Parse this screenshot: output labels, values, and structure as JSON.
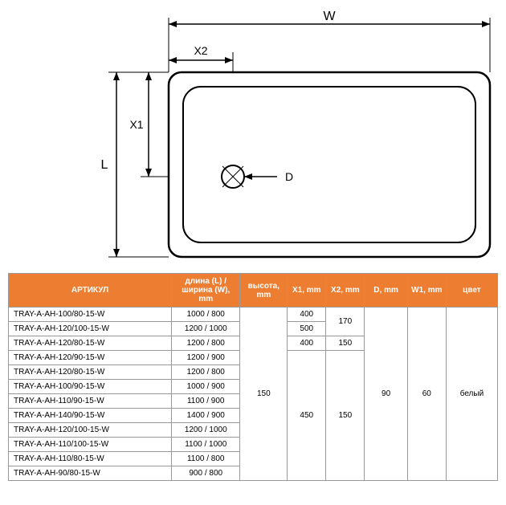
{
  "diagram": {
    "labels": {
      "W": "W",
      "L": "L",
      "X1": "X1",
      "X2": "X2",
      "D": "D"
    },
    "colors": {
      "stroke": "#000000",
      "tray_fill": "#ffffff",
      "bg": "#ffffff"
    },
    "stroke_width": 2
  },
  "table": {
    "header_bg": "#ed7d31",
    "header_fg": "#ffffff",
    "border_color": "#999999",
    "columns": [
      {
        "key": "article",
        "label": "АРТИКУЛ"
      },
      {
        "key": "dim",
        "label": "длина (L) / ширина (W), mm"
      },
      {
        "key": "h",
        "label": "высота, mm"
      },
      {
        "key": "x1",
        "label": "X1, mm"
      },
      {
        "key": "x2",
        "label": "X2, mm"
      },
      {
        "key": "d",
        "label": "D, mm"
      },
      {
        "key": "w1",
        "label": "W1, mm"
      },
      {
        "key": "color",
        "label": "цвет"
      }
    ],
    "rows": [
      {
        "article": "TRAY-A-AH-100/80-15-W",
        "dim": "1000 / 800"
      },
      {
        "article": "TRAY-A-AH-120/100-15-W",
        "dim": "1200 / 1000"
      },
      {
        "article": "TRAY-A-AH-120/80-15-W",
        "dim": "1200 / 800"
      },
      {
        "article": "TRAY-A-AH-120/90-15-W",
        "dim": "1200 / 900"
      },
      {
        "article": "TRAY-A-AH-120/80-15-W",
        "dim": "1200 / 800"
      },
      {
        "article": "TRAY-A-AH-100/90-15-W",
        "dim": "1000 / 900"
      },
      {
        "article": "TRAY-A-AH-110/90-15-W",
        "dim": "1100 / 900"
      },
      {
        "article": "TRAY-A-AH-140/90-15-W",
        "dim": "1400 / 900"
      },
      {
        "article": "TRAY-A-AH-120/100-15-W",
        "dim": "1200 / 1000"
      },
      {
        "article": "TRAY-A-AH-110/100-15-W",
        "dim": "1100 / 1000"
      },
      {
        "article": "TRAY-A-AH-110/80-15-W",
        "dim": "1100 / 800"
      },
      {
        "article": "TRAY-A-AH-90/80-15-W",
        "dim": "900 / 800"
      }
    ],
    "merged": {
      "h": {
        "value": "150",
        "rowspan": 12
      },
      "x1_a": {
        "value": "400",
        "start": 0,
        "rowspan": 1
      },
      "x1_b": {
        "value": "500",
        "start": 1,
        "rowspan": 1
      },
      "x1_c": {
        "value": "400",
        "start": 2,
        "rowspan": 1
      },
      "x1_d": {
        "value": "450",
        "start": 3,
        "rowspan": 9
      },
      "x2_a": {
        "value": "170",
        "start": 0,
        "rowspan": 2
      },
      "x2_b": {
        "value": "150",
        "start": 2,
        "rowspan": 1
      },
      "x2_c": {
        "value": "150",
        "start": 3,
        "rowspan": 9
      },
      "d": {
        "value": "90",
        "rowspan": 12
      },
      "w1": {
        "value": "60",
        "rowspan": 12
      },
      "color": {
        "value": "белый",
        "rowspan": 12
      }
    }
  }
}
